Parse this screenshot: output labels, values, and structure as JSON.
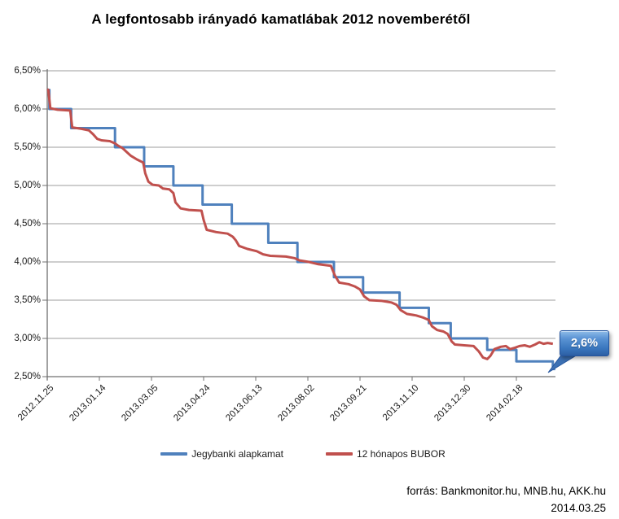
{
  "title": "A legfontosabb irányadó kamatlábak 2012 novemberétől",
  "colors": {
    "blue": "#4F81BD",
    "red": "#C0504D",
    "grid": "#9C9C9C",
    "axis": "#707070",
    "text": "#1A1A1A",
    "callout_fill": "#3D71B4",
    "callout_edge": "#24549E"
  },
  "chart_data": {
    "type": "line",
    "title": "A legfontosabb irányadó kamatlábak 2012 novemberétől",
    "grid": true,
    "legend_position": "bottom",
    "y_axis": {
      "min": 2.5,
      "max": 6.5,
      "step": 0.5,
      "format": "percent-hu",
      "tick_labels": [
        "6,50%",
        "6,00%",
        "5,50%",
        "5,00%",
        "4,50%",
        "4,00%",
        "3,50%",
        "3,00%",
        "2,50%"
      ]
    },
    "x_axis": {
      "start": "2012.11.25",
      "end": "2014.03.25",
      "tick_labels": [
        "2012.11.25",
        "2013.01.14",
        "2013.03.05",
        "2013.04.24",
        "2013.06.13",
        "2013.08.02",
        "2013.09.21",
        "2013.11.10",
        "2013.12.30",
        "2014.02.18"
      ]
    },
    "series": [
      {
        "name": "Jegybanki alapkamat",
        "color": "#4F81BD",
        "line_style": "step",
        "points": [
          [
            "2012-11-25",
            6.25
          ],
          [
            "2012-11-27",
            6.0
          ],
          [
            "2012-12-18",
            5.75
          ],
          [
            "2013-01-29",
            5.5
          ],
          [
            "2013-02-26",
            5.25
          ],
          [
            "2013-03-26",
            5.0
          ],
          [
            "2013-04-23",
            4.75
          ],
          [
            "2013-05-21",
            4.5
          ],
          [
            "2013-06-25",
            4.25
          ],
          [
            "2013-07-23",
            4.0
          ],
          [
            "2013-08-27",
            3.8
          ],
          [
            "2013-09-24",
            3.6
          ],
          [
            "2013-10-29",
            3.4
          ],
          [
            "2013-11-26",
            3.2
          ],
          [
            "2013-12-17",
            3.0
          ],
          [
            "2014-01-21",
            2.85
          ],
          [
            "2014-02-18",
            2.7
          ],
          [
            "2014-03-25",
            2.6
          ]
        ]
      },
      {
        "name": "12 hónapos BUBOR",
        "color": "#C0504D",
        "line_style": "line",
        "points": [
          [
            "2012-11-25",
            6.26
          ],
          [
            "2012-11-26",
            6.25
          ],
          [
            "2012-11-28",
            6.01
          ],
          [
            "2012-12-05",
            5.99
          ],
          [
            "2012-12-17",
            5.98
          ],
          [
            "2012-12-19",
            5.76
          ],
          [
            "2012-12-28",
            5.74
          ],
          [
            "2013-01-04",
            5.72
          ],
          [
            "2013-01-08",
            5.67
          ],
          [
            "2013-01-12",
            5.61
          ],
          [
            "2013-01-16",
            5.59
          ],
          [
            "2013-01-24",
            5.58
          ],
          [
            "2013-01-29",
            5.55
          ],
          [
            "2013-02-01",
            5.52
          ],
          [
            "2013-02-05",
            5.49
          ],
          [
            "2013-02-09",
            5.44
          ],
          [
            "2013-02-13",
            5.39
          ],
          [
            "2013-02-19",
            5.34
          ],
          [
            "2013-02-25",
            5.3
          ],
          [
            "2013-02-27",
            5.16
          ],
          [
            "2013-03-02",
            5.05
          ],
          [
            "2013-03-06",
            5.01
          ],
          [
            "2013-03-12",
            5.0
          ],
          [
            "2013-03-16",
            4.96
          ],
          [
            "2013-03-22",
            4.95
          ],
          [
            "2013-03-26",
            4.9
          ],
          [
            "2013-03-28",
            4.78
          ],
          [
            "2013-04-02",
            4.7
          ],
          [
            "2013-04-10",
            4.68
          ],
          [
            "2013-04-22",
            4.67
          ],
          [
            "2013-04-24",
            4.55
          ],
          [
            "2013-04-27",
            4.42
          ],
          [
            "2013-05-06",
            4.39
          ],
          [
            "2013-05-17",
            4.37
          ],
          [
            "2013-05-22",
            4.33
          ],
          [
            "2013-05-25",
            4.28
          ],
          [
            "2013-05-28",
            4.21
          ],
          [
            "2013-06-05",
            4.17
          ],
          [
            "2013-06-14",
            4.14
          ],
          [
            "2013-06-20",
            4.1
          ],
          [
            "2013-06-27",
            4.08
          ],
          [
            "2013-07-12",
            4.07
          ],
          [
            "2013-07-20",
            4.05
          ],
          [
            "2013-07-25",
            4.02
          ],
          [
            "2013-08-03",
            4.0
          ],
          [
            "2013-08-12",
            3.97
          ],
          [
            "2013-08-24",
            3.95
          ],
          [
            "2013-08-28",
            3.82
          ],
          [
            "2013-09-01",
            3.73
          ],
          [
            "2013-09-10",
            3.71
          ],
          [
            "2013-09-16",
            3.68
          ],
          [
            "2013-09-21",
            3.64
          ],
          [
            "2013-09-25",
            3.55
          ],
          [
            "2013-09-30",
            3.5
          ],
          [
            "2013-10-12",
            3.49
          ],
          [
            "2013-10-21",
            3.47
          ],
          [
            "2013-10-26",
            3.44
          ],
          [
            "2013-10-30",
            3.37
          ],
          [
            "2013-11-05",
            3.32
          ],
          [
            "2013-11-14",
            3.3
          ],
          [
            "2013-11-21",
            3.27
          ],
          [
            "2013-11-26",
            3.24
          ],
          [
            "2013-11-29",
            3.16
          ],
          [
            "2013-12-04",
            3.11
          ],
          [
            "2013-12-10",
            3.09
          ],
          [
            "2013-12-14",
            3.06
          ],
          [
            "2013-12-18",
            2.96
          ],
          [
            "2013-12-21",
            2.92
          ],
          [
            "2013-12-30",
            2.91
          ],
          [
            "2014-01-08",
            2.9
          ],
          [
            "2014-01-13",
            2.83
          ],
          [
            "2014-01-17",
            2.75
          ],
          [
            "2014-01-21",
            2.73
          ],
          [
            "2014-01-24",
            2.77
          ],
          [
            "2014-01-28",
            2.86
          ],
          [
            "2014-02-03",
            2.89
          ],
          [
            "2014-02-08",
            2.9
          ],
          [
            "2014-02-12",
            2.86
          ],
          [
            "2014-02-17",
            2.88
          ],
          [
            "2014-02-21",
            2.9
          ],
          [
            "2014-02-26",
            2.91
          ],
          [
            "2014-03-03",
            2.89
          ],
          [
            "2014-03-08",
            2.92
          ],
          [
            "2014-03-12",
            2.95
          ],
          [
            "2014-03-16",
            2.93
          ],
          [
            "2014-03-20",
            2.94
          ],
          [
            "2014-03-25",
            2.93
          ]
        ]
      }
    ],
    "annotation": {
      "label": "2,6%",
      "value": 2.6,
      "series": "Jegybanki alapkamat",
      "date": "2014.03.25"
    }
  },
  "legend": {
    "items": [
      {
        "label": "Jegybanki alapkamat",
        "color": "#4F81BD"
      },
      {
        "label": "12 hónapos BUBOR",
        "color": "#C0504D"
      }
    ]
  },
  "callout": {
    "label": "2,6%"
  },
  "footer": {
    "source": "forrás: Bankmonitor.hu, MNB.hu, AKK.hu",
    "date": "2014.03.25"
  }
}
